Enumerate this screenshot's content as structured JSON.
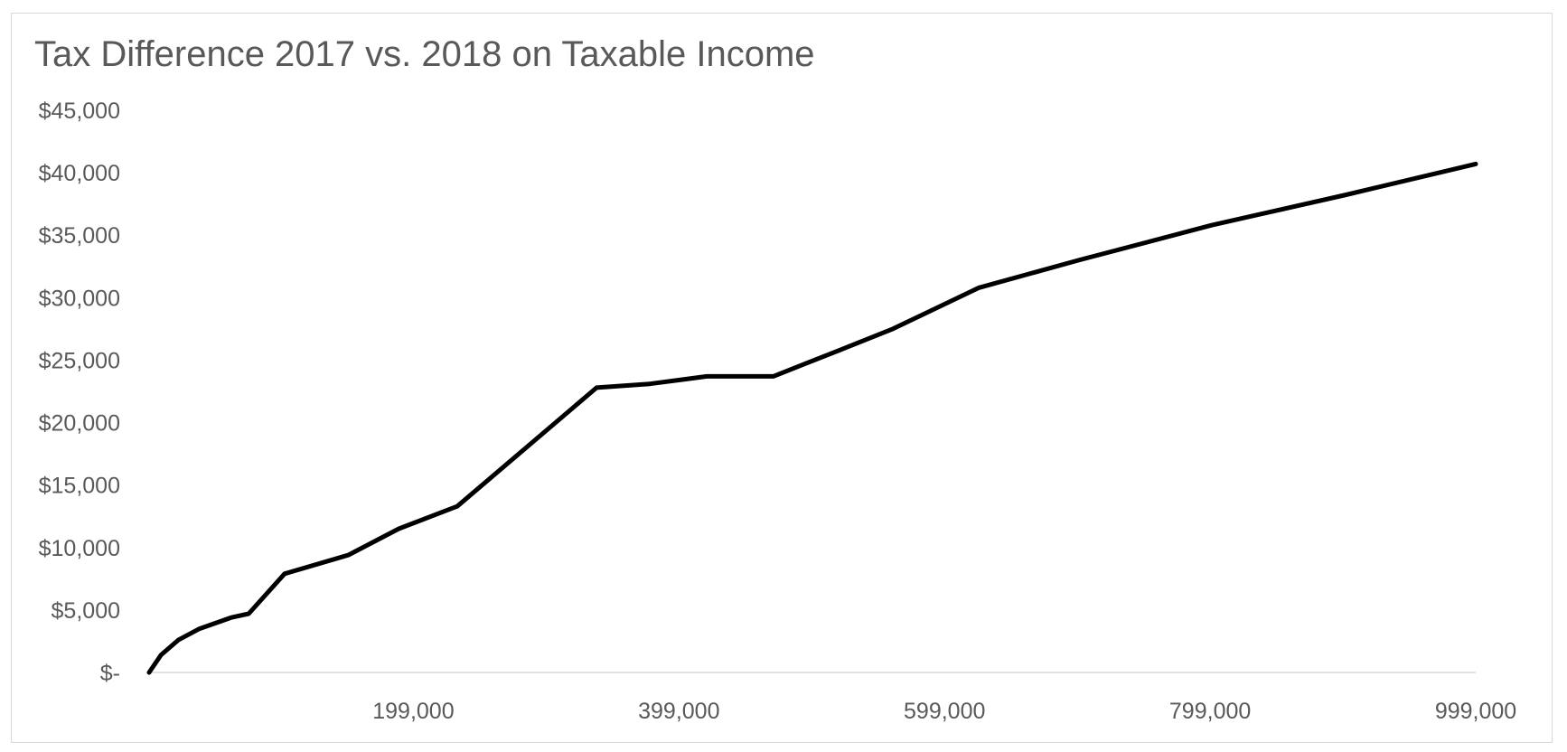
{
  "chart_data": {
    "type": "line",
    "title": "Tax Difference 2017 vs. 2018 on Taxable Income",
    "xlabel": "",
    "ylabel": "",
    "xlim": [
      0,
      999000
    ],
    "ylim": [
      0,
      45000
    ],
    "x_ticks": [
      199000,
      399000,
      599000,
      799000,
      999000
    ],
    "x_tick_labels": [
      "199,000",
      "399,000",
      "599,000",
      "799,000",
      "999,000"
    ],
    "y_ticks": [
      0,
      5000,
      10000,
      15000,
      20000,
      25000,
      30000,
      35000,
      40000,
      45000
    ],
    "y_tick_labels": [
      "$-",
      "$5,000",
      "$10,000",
      "$15,000",
      "$20,000",
      "$25,000",
      "$30,000",
      "$35,000",
      "$40,000",
      "$45,000"
    ],
    "grid": false,
    "legend": "none",
    "colors": {
      "line": "#000000",
      "axis": "#d9d9d9",
      "text": "#595959"
    },
    "series": [
      {
        "x": [
          0,
          9000,
          22000,
          38000,
          62000,
          75000,
          102000,
          150000,
          188000,
          232000,
          337000,
          377000,
          420000,
          470000,
          520000,
          560000,
          625000,
          700000,
          800000,
          900000,
          999000
        ],
        "y": [
          0,
          1400,
          2600,
          3500,
          4400,
          4700,
          7900,
          9400,
          11500,
          13300,
          22800,
          23100,
          23700,
          23700,
          25800,
          27500,
          30800,
          33000,
          35800,
          38200,
          40700
        ]
      }
    ]
  }
}
